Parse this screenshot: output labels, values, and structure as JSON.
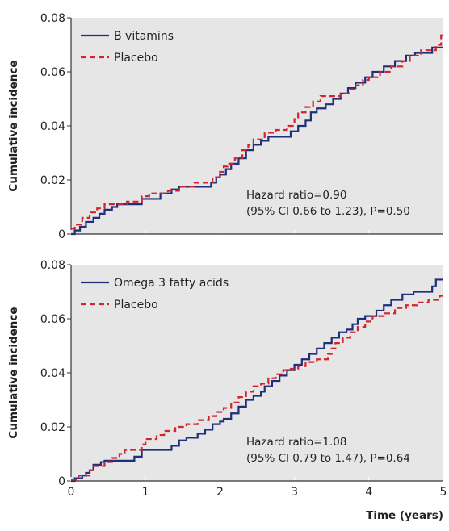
{
  "chart_data": [
    {
      "type": "line",
      "step": true,
      "ylabel": "Cumulative incidence",
      "xlim": [
        0,
        5
      ],
      "ylim": [
        0,
        0.08
      ],
      "y_ticks": [
        "0",
        "0.02",
        "0.04",
        "0.06",
        "0.08"
      ],
      "grid": false,
      "legend": "top-left",
      "annotation": [
        "Hazard ratio=0.90",
        "(95% CI 0.66 to 1.23), P=0.50"
      ],
      "series": [
        {
          "name": "B vitamins",
          "color": "#1f2f7a",
          "dash": "solid",
          "points": [
            [
              0,
              0
            ],
            [
              0.05,
              0.0013
            ],
            [
              0.12,
              0.0027
            ],
            [
              0.2,
              0.0045
            ],
            [
              0.3,
              0.006
            ],
            [
              0.38,
              0.0075
            ],
            [
              0.45,
              0.009
            ],
            [
              0.55,
              0.01
            ],
            [
              0.62,
              0.011
            ],
            [
              0.95,
              0.013
            ],
            [
              1.2,
              0.015
            ],
            [
              1.35,
              0.0165
            ],
            [
              1.45,
              0.0175
            ],
            [
              1.8,
              0.0175
            ],
            [
              1.88,
              0.019
            ],
            [
              1.95,
              0.021
            ],
            [
              2.0,
              0.022
            ],
            [
              2.08,
              0.024
            ],
            [
              2.15,
              0.026
            ],
            [
              2.25,
              0.028
            ],
            [
              2.35,
              0.031
            ],
            [
              2.45,
              0.033
            ],
            [
              2.55,
              0.0345
            ],
            [
              2.65,
              0.036
            ],
            [
              2.95,
              0.038
            ],
            [
              3.05,
              0.04
            ],
            [
              3.15,
              0.042
            ],
            [
              3.22,
              0.045
            ],
            [
              3.3,
              0.0465
            ],
            [
              3.42,
              0.048
            ],
            [
              3.52,
              0.05
            ],
            [
              3.62,
              0.052
            ],
            [
              3.72,
              0.054
            ],
            [
              3.82,
              0.056
            ],
            [
              3.95,
              0.058
            ],
            [
              4.05,
              0.06
            ],
            [
              4.2,
              0.062
            ],
            [
              4.35,
              0.064
            ],
            [
              4.5,
              0.066
            ],
            [
              4.62,
              0.067
            ],
            [
              4.85,
              0.069
            ],
            [
              5,
              0.069
            ]
          ]
        },
        {
          "name": "Placebo",
          "color": "#d1242f",
          "dash": "dashed",
          "points": [
            [
              0,
              0.002
            ],
            [
              0.05,
              0.0035
            ],
            [
              0.15,
              0.006
            ],
            [
              0.25,
              0.008
            ],
            [
              0.35,
              0.0095
            ],
            [
              0.45,
              0.011
            ],
            [
              0.75,
              0.012
            ],
            [
              0.95,
              0.014
            ],
            [
              1.05,
              0.015
            ],
            [
              1.3,
              0.016
            ],
            [
              1.45,
              0.0175
            ],
            [
              1.65,
              0.019
            ],
            [
              1.9,
              0.021
            ],
            [
              2.0,
              0.023
            ],
            [
              2.05,
              0.025
            ],
            [
              2.1,
              0.026
            ],
            [
              2.2,
              0.028
            ],
            [
              2.3,
              0.031
            ],
            [
              2.38,
              0.033
            ],
            [
              2.45,
              0.035
            ],
            [
              2.6,
              0.0375
            ],
            [
              2.75,
              0.0385
            ],
            [
              2.9,
              0.04
            ],
            [
              3.0,
              0.0425
            ],
            [
              3.05,
              0.045
            ],
            [
              3.15,
              0.047
            ],
            [
              3.25,
              0.049
            ],
            [
              3.35,
              0.051
            ],
            [
              3.62,
              0.052
            ],
            [
              3.75,
              0.0535
            ],
            [
              3.82,
              0.055
            ],
            [
              3.92,
              0.057
            ],
            [
              4.0,
              0.058
            ],
            [
              4.15,
              0.06
            ],
            [
              4.3,
              0.062
            ],
            [
              4.45,
              0.064
            ],
            [
              4.55,
              0.066
            ],
            [
              4.7,
              0.068
            ],
            [
              4.9,
              0.07
            ],
            [
              4.97,
              0.0735
            ],
            [
              5,
              0.0735
            ]
          ]
        }
      ]
    },
    {
      "type": "line",
      "step": true,
      "ylabel": "Cumulative incidence",
      "xlabel": "Time (years)",
      "xlim": [
        0,
        5
      ],
      "ylim": [
        0,
        0.08
      ],
      "x_ticks": [
        "0",
        "1",
        "2",
        "3",
        "4",
        "5"
      ],
      "y_ticks": [
        "0",
        "0.02",
        "0.04",
        "0.06",
        "0.08"
      ],
      "grid": false,
      "legend": "top-left",
      "annotation": [
        "Hazard ratio=1.08",
        "(95% CI 0.79 to 1.47), P=0.64"
      ],
      "series": [
        {
          "name": "Omega 3 fatty acids",
          "color": "#1f2f7a",
          "dash": "solid",
          "points": [
            [
              0,
              0
            ],
            [
              0.05,
              0.001
            ],
            [
              0.15,
              0.002
            ],
            [
              0.2,
              0.003
            ],
            [
              0.25,
              0.004
            ],
            [
              0.3,
              0.006
            ],
            [
              0.4,
              0.007
            ],
            [
              0.45,
              0.0075
            ],
            [
              0.85,
              0.009
            ],
            [
              0.95,
              0.0115
            ],
            [
              1.35,
              0.013
            ],
            [
              1.45,
              0.015
            ],
            [
              1.55,
              0.016
            ],
            [
              1.7,
              0.0175
            ],
            [
              1.8,
              0.019
            ],
            [
              1.9,
              0.021
            ],
            [
              2.0,
              0.022
            ],
            [
              2.05,
              0.023
            ],
            [
              2.15,
              0.025
            ],
            [
              2.25,
              0.0275
            ],
            [
              2.35,
              0.03
            ],
            [
              2.45,
              0.0315
            ],
            [
              2.55,
              0.033
            ],
            [
              2.6,
              0.035
            ],
            [
              2.7,
              0.037
            ],
            [
              2.8,
              0.039
            ],
            [
              2.9,
              0.041
            ],
            [
              3.0,
              0.043
            ],
            [
              3.1,
              0.045
            ],
            [
              3.2,
              0.047
            ],
            [
              3.3,
              0.049
            ],
            [
              3.4,
              0.051
            ],
            [
              3.5,
              0.053
            ],
            [
              3.6,
              0.055
            ],
            [
              3.7,
              0.056
            ],
            [
              3.78,
              0.058
            ],
            [
              3.85,
              0.06
            ],
            [
              3.95,
              0.061
            ],
            [
              4.1,
              0.063
            ],
            [
              4.2,
              0.065
            ],
            [
              4.3,
              0.067
            ],
            [
              4.45,
              0.069
            ],
            [
              4.6,
              0.07
            ],
            [
              4.85,
              0.072
            ],
            [
              4.9,
              0.0745
            ],
            [
              5,
              0.0745
            ]
          ]
        },
        {
          "name": "Placebo",
          "color": "#d1242f",
          "dash": "dashed",
          "points": [
            [
              0,
              0.0005
            ],
            [
              0.1,
              0.002
            ],
            [
              0.25,
              0.004
            ],
            [
              0.3,
              0.0055
            ],
            [
              0.45,
              0.007
            ],
            [
              0.55,
              0.0085
            ],
            [
              0.65,
              0.01
            ],
            [
              0.72,
              0.0115
            ],
            [
              0.95,
              0.0135
            ],
            [
              1.0,
              0.0155
            ],
            [
              1.15,
              0.017
            ],
            [
              1.25,
              0.0185
            ],
            [
              1.4,
              0.02
            ],
            [
              1.55,
              0.021
            ],
            [
              1.7,
              0.0225
            ],
            [
              1.85,
              0.024
            ],
            [
              1.95,
              0.0255
            ],
            [
              2.05,
              0.027
            ],
            [
              2.15,
              0.029
            ],
            [
              2.25,
              0.031
            ],
            [
              2.35,
              0.033
            ],
            [
              2.45,
              0.035
            ],
            [
              2.55,
              0.036
            ],
            [
              2.65,
              0.038
            ],
            [
              2.75,
              0.0395
            ],
            [
              2.85,
              0.041
            ],
            [
              2.95,
              0.0415
            ],
            [
              3.05,
              0.0425
            ],
            [
              3.15,
              0.044
            ],
            [
              3.3,
              0.045
            ],
            [
              3.45,
              0.047
            ],
            [
              3.5,
              0.049
            ],
            [
              3.55,
              0.051
            ],
            [
              3.65,
              0.053
            ],
            [
              3.75,
              0.055
            ],
            [
              3.85,
              0.057
            ],
            [
              3.95,
              0.059
            ],
            [
              4.05,
              0.061
            ],
            [
              4.2,
              0.062
            ],
            [
              4.35,
              0.064
            ],
            [
              4.5,
              0.065
            ],
            [
              4.65,
              0.066
            ],
            [
              4.8,
              0.067
            ],
            [
              4.95,
              0.0685
            ],
            [
              5,
              0.0685
            ]
          ]
        }
      ]
    }
  ]
}
